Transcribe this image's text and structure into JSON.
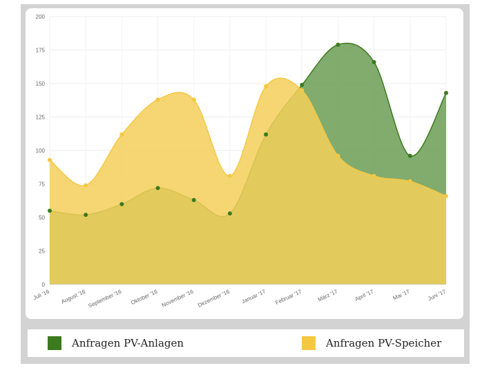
{
  "chart_data": {
    "type": "area",
    "categories": [
      "Juli '16",
      "August '16",
      "September '16",
      "Oktober '16",
      "November '16",
      "Dezember '16",
      "Januar '17",
      "Februar '17",
      "März '17",
      "April '17",
      "Mai '17",
      "Juni '17"
    ],
    "series": [
      {
        "name": "Anfragen PV-Anlagen",
        "color": "#3b7a1e",
        "fill": "#6b9e55",
        "values": [
          55,
          52,
          60,
          72,
          63,
          53,
          112,
          149,
          179,
          166,
          96,
          143
        ]
      },
      {
        "name": "Anfragen PV-Speicher",
        "color": "#f5c842",
        "fill": "#f3cf5b",
        "values": [
          93,
          74,
          112,
          138,
          138,
          81,
          148,
          145,
          96,
          81,
          77,
          66
        ]
      }
    ],
    "yticks": [
      0,
      25,
      50,
      75,
      100,
      125,
      150,
      175,
      200
    ],
    "ylim": [
      0,
      200
    ],
    "grid": true,
    "legend_position": "bottom",
    "title": "",
    "xlabel": "",
    "ylabel": ""
  }
}
